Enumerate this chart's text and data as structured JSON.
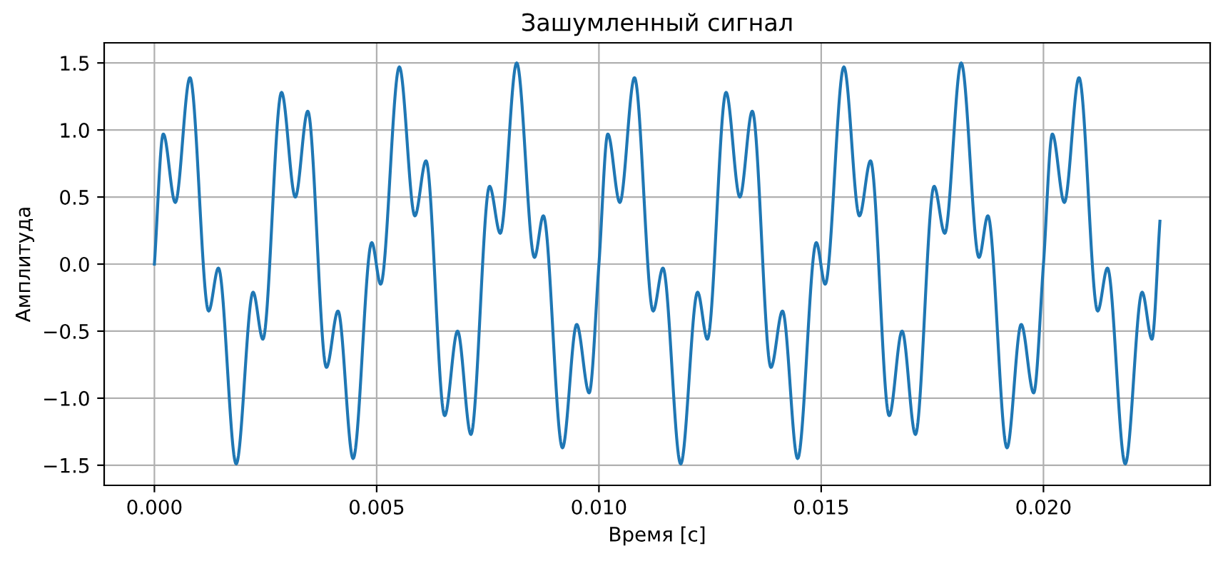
{
  "chart_data": {
    "type": "line",
    "title": "Зашумленный сигнал",
    "xlabel": "Время [с]",
    "ylabel": "Амплитуда",
    "grid": true,
    "xlim": [
      -0.00113,
      0.02375
    ],
    "ylim": [
      -1.65,
      1.65
    ],
    "xticks": [
      {
        "value": 0,
        "label": "0.000"
      },
      {
        "value": 0.005,
        "label": "0.005"
      },
      {
        "value": 0.01,
        "label": "0.010"
      },
      {
        "value": 0.015,
        "label": "0.015"
      },
      {
        "value": 0.02,
        "label": "0.020"
      }
    ],
    "yticks": [
      {
        "value": -1.5,
        "label": "−1.5"
      },
      {
        "value": -1.0,
        "label": "−1.0"
      },
      {
        "value": -0.5,
        "label": "−0.5"
      },
      {
        "value": 0,
        "label": "0.0"
      },
      {
        "value": 0.5,
        "label": "0.5"
      },
      {
        "value": 1.0,
        "label": "1.0"
      },
      {
        "value": 1.5,
        "label": "1.5"
      }
    ],
    "series": [
      {
        "color": "#1f77b4",
        "x": [
          0,
          0.0002,
          0.00047,
          0.0008,
          0.00122,
          0.00144,
          0.00184,
          0.00222,
          0.00244,
          0.00286,
          0.00317,
          0.00345,
          0.00387,
          0.00413,
          0.00447,
          0.00489,
          0.00509,
          0.00551,
          0.00586,
          0.00611,
          0.00653,
          0.00682,
          0.00712,
          0.00754,
          0.00778,
          0.00815,
          0.00855,
          0.00875,
          0.00918,
          0.0095,
          0.00978,
          0.01,
          0.0102,
          0.01047,
          0.0108,
          0.01122,
          0.01144,
          0.01184,
          0.01222,
          0.01244,
          0.01286,
          0.01317,
          0.01345,
          0.01387,
          0.01413,
          0.01447,
          0.01489,
          0.01509,
          0.01551,
          0.01586,
          0.01611,
          0.01653,
          0.01682,
          0.01712,
          0.01754,
          0.01778,
          0.01815,
          0.01855,
          0.01875,
          0.01918,
          0.0195,
          0.01978,
          0.02,
          0.0202,
          0.02047,
          0.0208,
          0.02122,
          0.02144,
          0.02184,
          0.02222,
          0.02244,
          0.02262
        ],
        "values": [
          0,
          0.97,
          0.46,
          1.39,
          -0.35,
          -0.03,
          -1.49,
          -0.21,
          -0.56,
          1.28,
          0.5,
          1.14,
          -0.77,
          -0.35,
          -1.45,
          0.16,
          -0.15,
          1.47,
          0.36,
          0.77,
          -1.13,
          -0.5,
          -1.27,
          0.58,
          0.23,
          1.5,
          0.05,
          0.36,
          -1.37,
          -0.45,
          -0.96,
          0,
          0.97,
          0.46,
          1.39,
          -0.35,
          -0.03,
          -1.49,
          -0.21,
          -0.56,
          1.28,
          0.5,
          1.14,
          -0.77,
          -0.35,
          -1.45,
          0.16,
          -0.15,
          1.47,
          0.36,
          0.77,
          -1.13,
          -0.5,
          -1.27,
          0.58,
          0.23,
          1.5,
          0.05,
          0.36,
          -1.37,
          -0.45,
          -0.96,
          0,
          0.97,
          0.46,
          1.39,
          -0.35,
          -0.03,
          -1.49,
          -0.21,
          -0.56,
          0.32
        ]
      }
    ]
  }
}
